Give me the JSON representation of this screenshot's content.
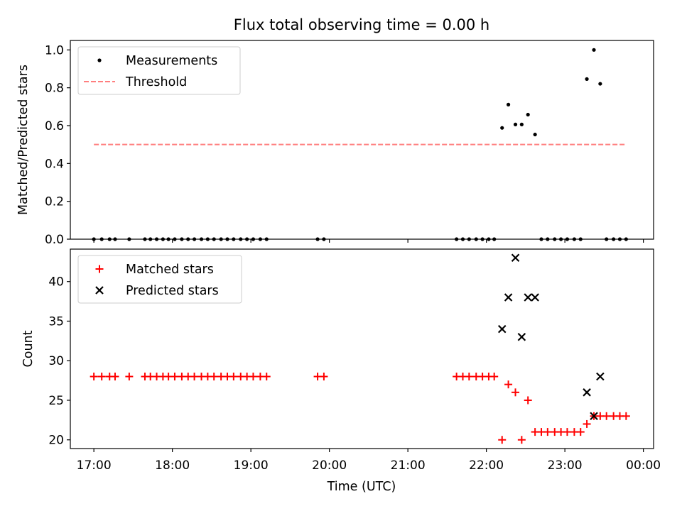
{
  "figure": {
    "title": "Flux total observing time = 0.00 h",
    "xlabel": "Time (UTC)",
    "xticks": [
      "17:00",
      "18:00",
      "19:00",
      "20:00",
      "21:00",
      "22:00",
      "23:00",
      "00:00"
    ]
  },
  "colors": {
    "measurement": "#000000",
    "threshold": "#ff7f7f",
    "matched": "#ff0000",
    "predicted": "#000000"
  },
  "chart_data": [
    {
      "type": "scatter",
      "ylabel": "Matched/Predicted stars",
      "yticks": [
        "0.0",
        "0.2",
        "0.4",
        "0.6",
        "0.8",
        "1.0"
      ],
      "ylim": [
        0,
        1.05
      ],
      "xlim_hours": [
        16.7,
        24.13
      ],
      "legend_position": "top-left",
      "series": [
        {
          "name": "Measurements",
          "marker": "dot",
          "x": [
            17.0,
            17.1,
            17.2,
            17.27,
            17.45,
            17.65,
            17.72,
            17.8,
            17.88,
            17.95,
            18.03,
            18.12,
            18.2,
            18.28,
            18.37,
            18.45,
            18.53,
            18.62,
            18.7,
            18.78,
            18.87,
            18.95,
            19.03,
            19.12,
            19.2,
            19.85,
            19.93,
            21.62,
            21.7,
            21.78,
            21.87,
            21.95,
            22.03,
            22.1,
            22.2,
            22.28,
            22.37,
            22.45,
            22.53,
            22.62,
            22.7,
            22.78,
            22.87,
            22.95,
            23.03,
            23.12,
            23.2,
            23.28,
            23.37,
            23.45,
            23.53,
            23.62,
            23.7,
            23.78
          ],
          "y": [
            0,
            0,
            0,
            0,
            0,
            0,
            0,
            0,
            0,
            0,
            0,
            0,
            0,
            0,
            0,
            0,
            0,
            0,
            0,
            0,
            0,
            0,
            0,
            0,
            0,
            0,
            0,
            0,
            0,
            0,
            0,
            0,
            0,
            0,
            0.588,
            0.711,
            0.606,
            0.606,
            0.658,
            0.553,
            0,
            0,
            0,
            0,
            0,
            0,
            0,
            0.846,
            1.0,
            0.821,
            0,
            0,
            0,
            0
          ]
        },
        {
          "name": "Threshold",
          "style": "dashed",
          "x": [
            17.0,
            23.78
          ],
          "y": [
            0.5,
            0.5
          ]
        }
      ]
    },
    {
      "type": "scatter",
      "ylabel": "Count",
      "yticks": [
        "20",
        "25",
        "30",
        "35",
        "40"
      ],
      "ylim": [
        18.9,
        44.1
      ],
      "xlim_hours": [
        16.7,
        24.13
      ],
      "legend_position": "top-left",
      "series": [
        {
          "name": "Matched stars",
          "marker": "plus",
          "x": [
            17.0,
            17.1,
            17.2,
            17.27,
            17.45,
            17.65,
            17.72,
            17.8,
            17.88,
            17.95,
            18.03,
            18.12,
            18.2,
            18.28,
            18.37,
            18.45,
            18.53,
            18.62,
            18.7,
            18.78,
            18.87,
            18.95,
            19.03,
            19.12,
            19.2,
            19.85,
            19.93,
            21.62,
            21.7,
            21.78,
            21.87,
            21.95,
            22.03,
            22.1,
            22.2,
            22.28,
            22.37,
            22.45,
            22.53,
            22.62,
            22.7,
            22.78,
            22.87,
            22.95,
            23.03,
            23.12,
            23.2,
            23.28,
            23.37,
            23.45,
            23.53,
            23.62,
            23.7,
            23.78
          ],
          "y": [
            28,
            28,
            28,
            28,
            28,
            28,
            28,
            28,
            28,
            28,
            28,
            28,
            28,
            28,
            28,
            28,
            28,
            28,
            28,
            28,
            28,
            28,
            28,
            28,
            28,
            28,
            28,
            28,
            28,
            28,
            28,
            28,
            28,
            28,
            20,
            27,
            26,
            20,
            25,
            21,
            21,
            21,
            21,
            21,
            21,
            21,
            21,
            22,
            23,
            23,
            23,
            23,
            23,
            23
          ]
        },
        {
          "name": "Predicted stars",
          "marker": "x",
          "x": [
            22.2,
            22.28,
            22.37,
            22.45,
            22.53,
            22.62,
            23.28,
            23.37,
            23.45
          ],
          "y": [
            34,
            38,
            43,
            33,
            38,
            38,
            26,
            23,
            28
          ]
        }
      ]
    }
  ]
}
